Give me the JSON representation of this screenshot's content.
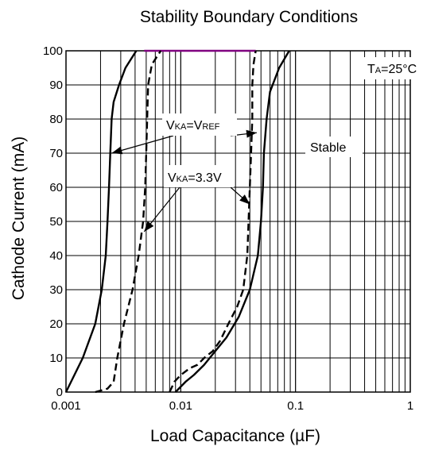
{
  "chart_data": {
    "type": "line",
    "title": "Stability Boundary Conditions",
    "xlabel": "Load Capacitance (µF)",
    "ylabel": "Cathode Current (mA)",
    "x_scale": "log",
    "xlim": [
      0.001,
      1
    ],
    "ylim": [
      0,
      100
    ],
    "x_ticks": [
      "0.001",
      "0.01",
      "0.1",
      "1"
    ],
    "y_ticks": [
      "0",
      "10",
      "20",
      "30",
      "40",
      "50",
      "60",
      "70",
      "80",
      "90",
      "100"
    ],
    "grid": true,
    "annotations": {
      "condition": {
        "main": "T",
        "sub": "A",
        "tail": "=25°C"
      },
      "vref": {
        "v1": "V",
        "s1": "KA",
        "eq": "=V",
        "s2": "REF"
      },
      "v33": {
        "v1": "V",
        "s1": "KA",
        "tail": "=3.3V"
      },
      "stable": "Stable"
    },
    "series": [
      {
        "name": "VKA=VREF",
        "style": "solid",
        "color": "#000000",
        "points": [
          [
            0.001,
            0
          ],
          [
            0.0014,
            10
          ],
          [
            0.0018,
            20
          ],
          [
            0.00205,
            30
          ],
          [
            0.00222,
            40
          ],
          [
            0.0023,
            50
          ],
          [
            0.00237,
            60
          ],
          [
            0.00243,
            70
          ],
          [
            0.0025,
            80
          ],
          [
            0.0026,
            85
          ],
          [
            0.0029,
            90
          ],
          [
            0.0033,
            95
          ],
          [
            0.0041,
            100
          ]
        ]
      },
      {
        "name": "VKA=VREF",
        "style": "solid",
        "color": "#000000",
        "points": [
          [
            0.009,
            0
          ],
          [
            0.011,
            3
          ],
          [
            0.013,
            5
          ],
          [
            0.016,
            8
          ],
          [
            0.02,
            12
          ],
          [
            0.025,
            16
          ],
          [
            0.032,
            22
          ],
          [
            0.04,
            30
          ],
          [
            0.047,
            40
          ],
          [
            0.05,
            50
          ],
          [
            0.052,
            60
          ],
          [
            0.053,
            70
          ],
          [
            0.056,
            80
          ],
          [
            0.06,
            88
          ],
          [
            0.072,
            95
          ],
          [
            0.088,
            100
          ]
        ]
      },
      {
        "name": "VKA=3.3V",
        "style": "dashed",
        "color": "#000000",
        "points": [
          [
            0.0018,
            0
          ],
          [
            0.0023,
            1
          ],
          [
            0.0026,
            3
          ],
          [
            0.0028,
            10
          ],
          [
            0.0032,
            20
          ],
          [
            0.0038,
            30
          ],
          [
            0.0043,
            40
          ],
          [
            0.0047,
            50
          ],
          [
            0.0049,
            60
          ],
          [
            0.005,
            70
          ],
          [
            0.0051,
            80
          ],
          [
            0.0052,
            90
          ],
          [
            0.0056,
            96
          ],
          [
            0.0067,
            100
          ]
        ]
      },
      {
        "name": "VKA=3.3V",
        "style": "dashed",
        "color": "#000000",
        "points": [
          [
            0.008,
            0
          ],
          [
            0.0088,
            3
          ],
          [
            0.01,
            5
          ],
          [
            0.012,
            7
          ],
          [
            0.014,
            8
          ],
          [
            0.016,
            10
          ],
          [
            0.019,
            12
          ],
          [
            0.022,
            15
          ],
          [
            0.026,
            20
          ],
          [
            0.031,
            25
          ],
          [
            0.035,
            30
          ],
          [
            0.038,
            40
          ],
          [
            0.039,
            50
          ],
          [
            0.04,
            60
          ],
          [
            0.041,
            70
          ],
          [
            0.042,
            80
          ],
          [
            0.042,
            90
          ],
          [
            0.043,
            96
          ],
          [
            0.045,
            100
          ]
        ]
      }
    ],
    "arrows": [
      {
        "label": "vref",
        "to": [
          0.0025,
          70
        ]
      },
      {
        "label": "vref",
        "to": [
          0.046,
          76
        ]
      },
      {
        "label": "v33",
        "to": [
          0.0048,
          47
        ]
      },
      {
        "label": "v33",
        "to": [
          0.04,
          55
        ]
      }
    ],
    "highlight_segment": {
      "from": [
        0.0048,
        100
      ],
      "to": [
        0.045,
        100
      ],
      "color": "#800080"
    }
  }
}
